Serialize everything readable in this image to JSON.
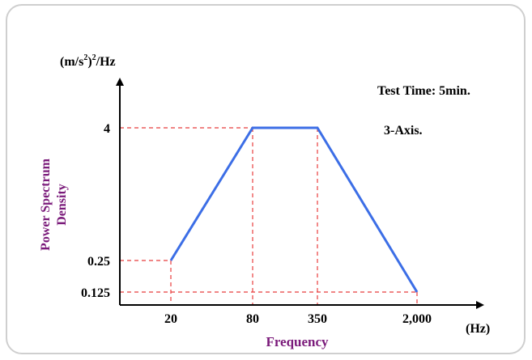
{
  "chart_data": {
    "type": "line",
    "y_unit_label": {
      "base": "(m/s",
      "exp1": "2",
      "mid": ")",
      "exp2": "2",
      "tail": "/Hz"
    },
    "x_unit_label": "(Hz)",
    "xlabel": "Frequency",
    "ylabel_lines": [
      "Power Spectrum",
      "Density"
    ],
    "x_ticks": [
      {
        "value": 20,
        "label": "20"
      },
      {
        "value": 80,
        "label": "80"
      },
      {
        "value": 350,
        "label": "350"
      },
      {
        "value": 2000,
        "label": "2,000"
      }
    ],
    "y_ticks": [
      {
        "value": 0.125,
        "label": "0.125"
      },
      {
        "value": 0.25,
        "label": "0.25"
      },
      {
        "value": 4,
        "label": "4"
      }
    ],
    "series": [
      {
        "color": "#3c6ee6",
        "points": [
          {
            "x": 20,
            "y": 0.25
          },
          {
            "x": 80,
            "y": 4
          },
          {
            "x": 350,
            "y": 4
          },
          {
            "x": 2000,
            "y": 0.125
          }
        ]
      }
    ],
    "annotations": [
      "Test Time: 5min.",
      "3-Axis."
    ],
    "guide_color": "#e83c3c",
    "label_color": "#7a1a7a"
  }
}
